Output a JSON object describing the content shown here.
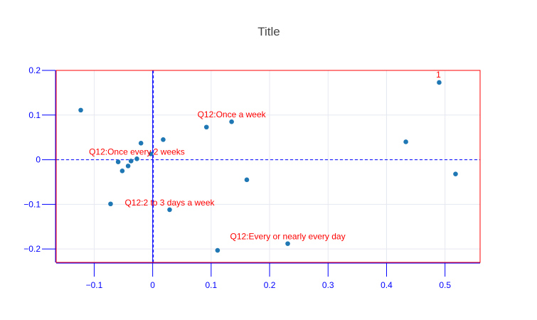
{
  "chart_data": {
    "type": "scatter",
    "title": "Title",
    "xlabel": "",
    "ylabel": "",
    "xlim": [
      -0.165,
      0.56
    ],
    "ylim": [
      -0.23,
      0.2
    ],
    "x_ticks": [
      -0.1,
      0,
      0.1,
      0.2,
      0.3,
      0.4,
      0.5
    ],
    "x_tick_labels": [
      "−0.1",
      "0",
      "0.1",
      "0.2",
      "0.3",
      "0.4",
      "0.5"
    ],
    "y_ticks": [
      -0.2,
      -0.1,
      0,
      0.1,
      0.2
    ],
    "y_tick_labels": [
      "−0.2",
      "−0.1",
      "0",
      "0.1",
      "0.2"
    ],
    "grid": true,
    "reference_lines": {
      "x": 0,
      "y": 0,
      "style": "dashed"
    },
    "points": [
      {
        "x": -0.123,
        "y": 0.111
      },
      {
        "x": -0.072,
        "y": -0.099
      },
      {
        "x": -0.059,
        "y": -0.005
      },
      {
        "x": -0.052,
        "y": -0.025
      },
      {
        "x": -0.042,
        "y": -0.014
      },
      {
        "x": -0.037,
        "y": -0.003
      },
      {
        "x": -0.027,
        "y": 0.002
      },
      {
        "x": -0.02,
        "y": 0.037
      },
      {
        "x": -0.003,
        "y": 0.013
      },
      {
        "x": 0.018,
        "y": 0.045
      },
      {
        "x": 0.029,
        "y": -0.112
      },
      {
        "x": 0.092,
        "y": 0.073
      },
      {
        "x": 0.111,
        "y": -0.203
      },
      {
        "x": 0.135,
        "y": 0.085
      },
      {
        "x": 0.161,
        "y": -0.045
      },
      {
        "x": 0.231,
        "y": -0.188
      },
      {
        "x": 0.433,
        "y": 0.04
      },
      {
        "x": 0.49,
        "y": 0.173
      },
      {
        "x": 0.518,
        "y": -0.032
      }
    ],
    "annotations": [
      {
        "text": "Q12:Once a week",
        "x": 0.135,
        "y": 0.085
      },
      {
        "text": "Q12:Once every 2 weeks",
        "x": -0.027,
        "y": 0.002
      },
      {
        "text": "Q12:2 to 3 days a week",
        "x": 0.029,
        "y": -0.112
      },
      {
        "text": "Q12:Every or nearly every day",
        "x": 0.231,
        "y": -0.188
      },
      {
        "text": "1",
        "x": 0.49,
        "y": 0.173
      }
    ],
    "colors": {
      "point": "#1f77b4",
      "annotation": "#ff0000",
      "axis": "#0000ff",
      "frame": "#ff0000",
      "grid": "#e6e8f0",
      "title": "#444444"
    }
  }
}
